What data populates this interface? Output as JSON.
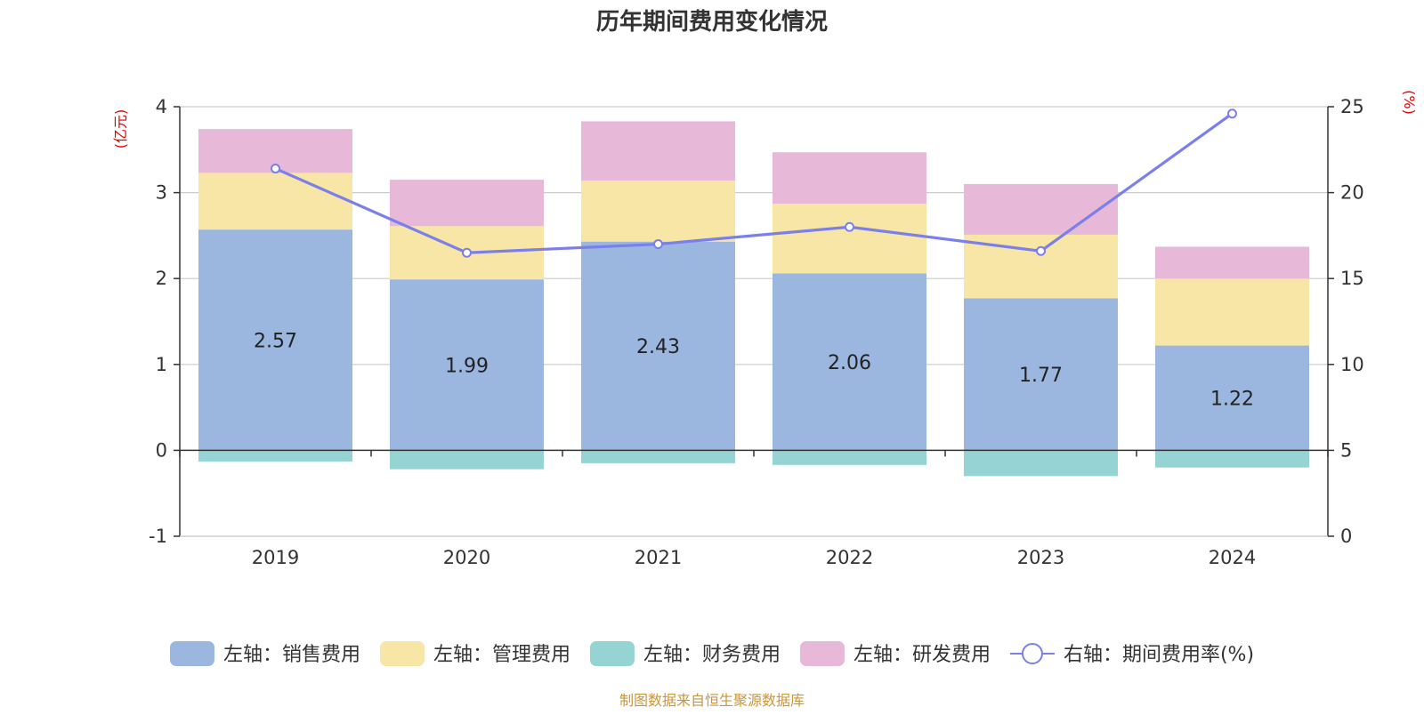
{
  "chart_data": {
    "type": "bar",
    "title": "历年期间费用变化情况",
    "left_axis_unit": "(亿元)",
    "right_axis_unit": "(%)",
    "categories": [
      "2019",
      "2020",
      "2021",
      "2022",
      "2023",
      "2024"
    ],
    "left_ylim": [
      -1,
      4
    ],
    "left_ticks": [
      -1,
      0,
      1,
      2,
      3,
      4
    ],
    "right_ylim": [
      0,
      25
    ],
    "right_ticks": [
      0,
      5,
      10,
      15,
      20,
      25
    ],
    "grid": true,
    "stacked": true,
    "legend_position": "bottom",
    "series": [
      {
        "name": "左轴：销售费用",
        "axis": "left",
        "kind": "bar",
        "color": "#9bb7e0",
        "values": [
          2.57,
          1.99,
          2.43,
          2.06,
          1.77,
          1.22
        ],
        "show_labels": true
      },
      {
        "name": "左轴：管理费用",
        "axis": "left",
        "kind": "bar",
        "color": "#f7e6a6",
        "values": [
          0.66,
          0.62,
          0.71,
          0.81,
          0.74,
          0.78
        ]
      },
      {
        "name": "左轴：财务费用",
        "axis": "left",
        "kind": "bar",
        "color": "#96d4d3",
        "values": [
          -0.13,
          -0.22,
          -0.15,
          -0.17,
          -0.3,
          -0.2
        ]
      },
      {
        "name": "左轴：研发费用",
        "axis": "left",
        "kind": "bar",
        "color": "#e8b8d9",
        "values": [
          0.51,
          0.54,
          0.69,
          0.6,
          0.59,
          0.37
        ]
      },
      {
        "name": "右轴：期间费用率(%)",
        "axis": "right",
        "kind": "line",
        "color": "#7b7fea",
        "values": [
          21.4,
          16.5,
          17.0,
          18.0,
          16.6,
          24.6
        ]
      }
    ],
    "footer": "制图数据来自恒生聚源数据库"
  }
}
